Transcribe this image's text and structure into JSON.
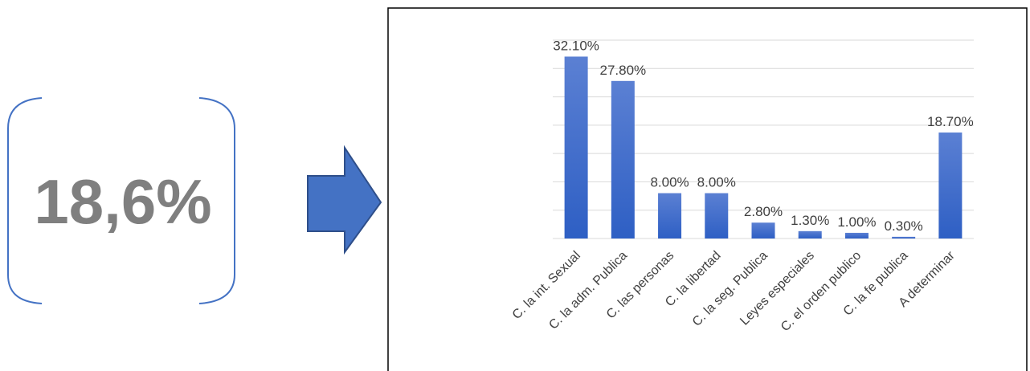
{
  "stat": {
    "value": "18,6%"
  },
  "colors": {
    "bar_top": "#5b80d3",
    "bar_bottom": "#2e5fc4",
    "arrow": "#4472c4",
    "arrow_stroke": "#2f4f8a",
    "bracket": "#4472c4",
    "text": "#404040",
    "grid": "#d9d9d9",
    "frame": "#000000"
  },
  "chart_data": {
    "type": "bar",
    "categories": [
      "C. la int. Sexual",
      "C. la adm. Publica",
      "C. las personas",
      "C. la libertad",
      "C. la seg. Publica",
      "Leyes especiales",
      "C. el orden publico",
      "C. la fe publica",
      "A determinar"
    ],
    "values": [
      32.1,
      27.8,
      8.0,
      8.0,
      2.8,
      1.3,
      1.0,
      0.3,
      18.7
    ],
    "data_labels": [
      "32.10%",
      "27.80%",
      "8.00%",
      "8.00%",
      "2.80%",
      "1.30%",
      "1.00%",
      "0.30%",
      "18.70%"
    ],
    "ylim": [
      0,
      35
    ],
    "grid": true,
    "title": "",
    "xlabel": "",
    "ylabel": ""
  }
}
